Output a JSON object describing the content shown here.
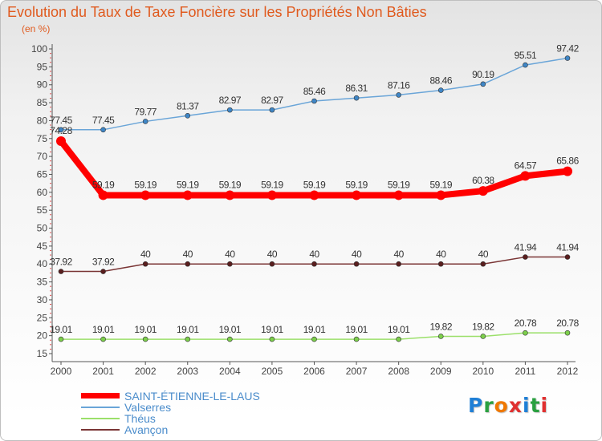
{
  "title": "Evolution du Taux de Taxe Foncière sur les Propriétés Non Bâties",
  "unit_label": "(en %)",
  "logo": {
    "text": "Proxiti",
    "letter_colors": [
      "#1f7fd6",
      "#2aa040",
      "#f07800",
      "#e03030",
      "#1f7fd6",
      "#2aa040",
      "#e03030"
    ]
  },
  "chart_data": {
    "type": "line",
    "title": "Evolution du Taux de Taxe Foncière sur les Propriétés Non Bâties",
    "ylabel": "(en %)",
    "xlabel": "",
    "ylim": [
      15,
      100
    ],
    "yticks": [
      15,
      20,
      25,
      30,
      35,
      40,
      45,
      50,
      55,
      60,
      65,
      70,
      75,
      80,
      85,
      90,
      95,
      100
    ],
    "grid": false,
    "legend_position": "bottom-left",
    "categories": [
      "2000",
      "2001",
      "2002",
      "2003",
      "2004",
      "2005",
      "2006",
      "2007",
      "2008",
      "2009",
      "2010",
      "2011",
      "2012"
    ],
    "series": [
      {
        "name": "SAINT-ÉTIENNE-LE-LAUS",
        "color": "#ff0000",
        "marker_color": "#ff0000",
        "label_color": "#333333",
        "bold": true,
        "values": [
          74.28,
          59.19,
          59.19,
          59.19,
          59.19,
          59.19,
          59.19,
          59.19,
          59.19,
          59.19,
          60.38,
          64.57,
          65.86
        ],
        "labels": [
          "74.28",
          "59.19",
          "59.19",
          "59.19",
          "59.19",
          "59.19",
          "59.19",
          "59.19",
          "59.19",
          "59.19",
          "60.38",
          "64.57",
          "65.86"
        ]
      },
      {
        "name": "Valserres",
        "color": "#6aa5d8",
        "marker_color": "#3f86c6",
        "label_color": "#333333",
        "bold": false,
        "values": [
          77.45,
          77.45,
          79.77,
          81.37,
          82.97,
          82.97,
          85.46,
          86.31,
          87.16,
          88.46,
          90.19,
          95.51,
          97.42
        ],
        "labels": [
          "77.45",
          "77.45",
          "79.77",
          "81.37",
          "82.97",
          "82.97",
          "85.46",
          "86.31",
          "87.16",
          "88.46",
          "90.19",
          "95.51",
          "97.42"
        ]
      },
      {
        "name": "Théus",
        "color": "#9be06a",
        "marker_color": "#7ccf4b",
        "label_color": "#333333",
        "bold": false,
        "values": [
          19.01,
          19.01,
          19.01,
          19.01,
          19.01,
          19.01,
          19.01,
          19.01,
          19.01,
          19.82,
          19.82,
          20.78,
          20.78
        ],
        "labels": [
          "19.01",
          "19.01",
          "19.01",
          "19.01",
          "19.01",
          "19.01",
          "19.01",
          "19.01",
          "19.01",
          "19.82",
          "19.82",
          "20.78",
          "20.78"
        ]
      },
      {
        "name": "Avançon",
        "color": "#7a3535",
        "marker_color": "#5a1e1e",
        "label_color": "#333333",
        "bold": false,
        "values": [
          37.92,
          37.92,
          40,
          40,
          40,
          40,
          40,
          40,
          40,
          40,
          40,
          41.94,
          41.94
        ],
        "labels": [
          "37.92",
          "37.92",
          "40",
          "40",
          "40",
          "40",
          "40",
          "40",
          "40",
          "40",
          "40",
          "41.94",
          "41.94"
        ]
      }
    ]
  },
  "legend": [
    {
      "name": "SAINT-ÉTIENNE-LE-LAUS",
      "color": "#ff0000"
    },
    {
      "name": "Valserres",
      "color": "#6aa5d8"
    },
    {
      "name": "Théus",
      "color": "#9be06a"
    },
    {
      "name": "Avançon",
      "color": "#7a3535"
    }
  ]
}
